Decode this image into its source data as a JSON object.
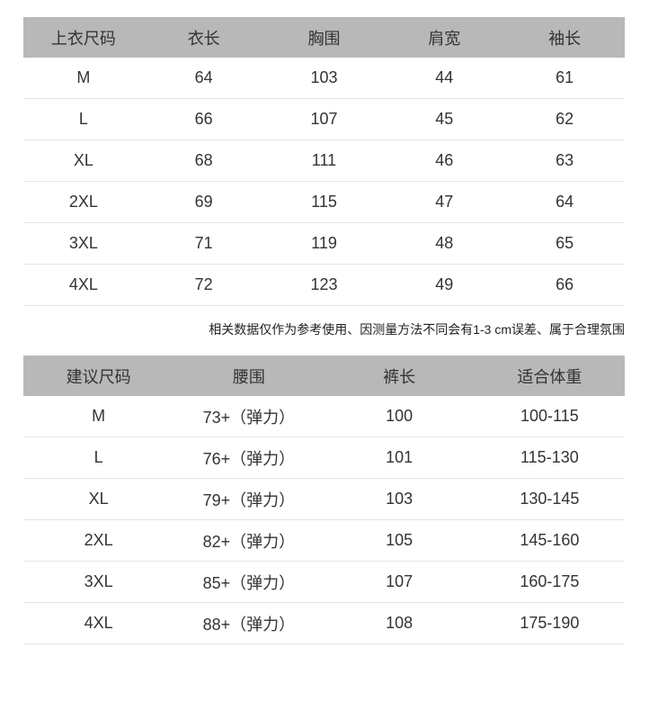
{
  "top_table": {
    "headers": [
      "上衣尺码",
      "衣长",
      "胸围",
      "肩宽",
      "袖长"
    ],
    "rows": [
      [
        "M",
        "64",
        "103",
        "44",
        "61"
      ],
      [
        "L",
        "66",
        "107",
        "45",
        "62"
      ],
      [
        "XL",
        "68",
        "111",
        "46",
        "63"
      ],
      [
        "2XL",
        "69",
        "115",
        "47",
        "64"
      ],
      [
        "3XL",
        "71",
        "119",
        "48",
        "65"
      ],
      [
        "4XL",
        "72",
        "123",
        "49",
        "66"
      ]
    ]
  },
  "note": "相关数据仅作为参考使用、因测量方法不同会有1-3 cm误差、属于合理氛围",
  "bottom_table": {
    "headers": [
      "建议尺码",
      "腰围",
      "裤长",
      "适合体重"
    ],
    "rows": [
      [
        "M",
        "73+（弹力）",
        "100",
        "100-115"
      ],
      [
        "L",
        "76+（弹力）",
        "101",
        "115-130"
      ],
      [
        "XL",
        "79+（弹力）",
        "103",
        "130-145"
      ],
      [
        "2XL",
        "82+（弹力）",
        "105",
        "145-160"
      ],
      [
        "3XL",
        "85+（弹力）",
        "107",
        "160-175"
      ],
      [
        "4XL",
        "88+（弹力）",
        "108",
        "175-190"
      ]
    ]
  },
  "colors": {
    "header_bg": "#b8b8b8",
    "divider": "#e6e6e6"
  }
}
